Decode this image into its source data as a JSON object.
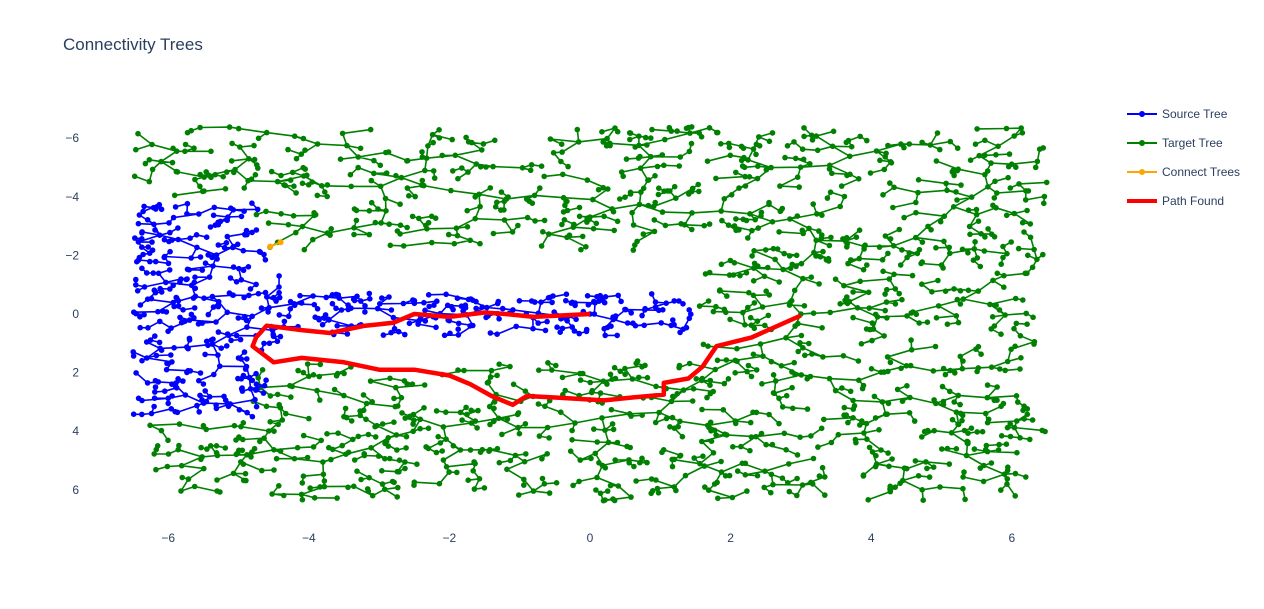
{
  "chart_data": {
    "type": "scatter",
    "title": "Connectivity Trees",
    "xlabel": "",
    "ylabel": "",
    "xlim": [
      -6.6,
      6.6
    ],
    "ylim": [
      7.2,
      -7.2
    ],
    "y_reversed": true,
    "x_ticks": [
      "−6",
      "−4",
      "−2",
      "0",
      "2",
      "4",
      "6"
    ],
    "x_tick_values": [
      -6,
      -4,
      -2,
      0,
      2,
      4,
      6
    ],
    "y_ticks": [
      "−6",
      "−4",
      "−2",
      "0",
      "2",
      "4",
      "6"
    ],
    "y_tick_values": [
      -6,
      -4,
      -2,
      0,
      2,
      4,
      6
    ],
    "grid": false,
    "legend_position": "right",
    "series": [
      {
        "name": "Source Tree",
        "color": "#0000ff",
        "mode": "lines+markers",
        "root": [
          0,
          0
        ]
      },
      {
        "name": "Target Tree",
        "color": "#008000",
        "mode": "lines+markers",
        "root": [
          3,
          0
        ]
      },
      {
        "name": "Connect Trees",
        "color": "#ffa500",
        "mode": "lines+markers",
        "points": [
          [
            -4.55,
            -2.3
          ],
          [
            -4.4,
            -2.45
          ]
        ]
      },
      {
        "name": "Path Found",
        "color": "#ff0000",
        "mode": "lines",
        "points": [
          [
            0,
            0
          ],
          [
            -0.8,
            0.1
          ],
          [
            -1.2,
            0
          ],
          [
            -1.5,
            -0.05
          ],
          [
            -2.0,
            0.1
          ],
          [
            -2.5,
            0
          ],
          [
            -2.8,
            0.3
          ],
          [
            -3.2,
            0.4
          ],
          [
            -3.7,
            0.65
          ],
          [
            -4.1,
            0.55
          ],
          [
            -4.6,
            0.4
          ],
          [
            -4.75,
            0.8
          ],
          [
            -4.8,
            1.1
          ],
          [
            -4.5,
            1.65
          ],
          [
            -4.1,
            1.5
          ],
          [
            -3.5,
            1.65
          ],
          [
            -3.0,
            1.9
          ],
          [
            -2.5,
            1.9
          ],
          [
            -2.0,
            2.1
          ],
          [
            -1.7,
            2.4
          ],
          [
            -1.4,
            2.8
          ],
          [
            -1.1,
            3.1
          ],
          [
            -0.9,
            2.8
          ],
          [
            -0.5,
            2.85
          ],
          [
            0.2,
            2.95
          ],
          [
            0.6,
            2.85
          ],
          [
            1.05,
            2.75
          ],
          [
            1.05,
            2.35
          ],
          [
            1.4,
            2.2
          ],
          [
            1.6,
            1.8
          ],
          [
            1.8,
            1.1
          ],
          [
            2.3,
            0.8
          ],
          [
            3.0,
            0.05
          ]
        ]
      }
    ]
  }
}
